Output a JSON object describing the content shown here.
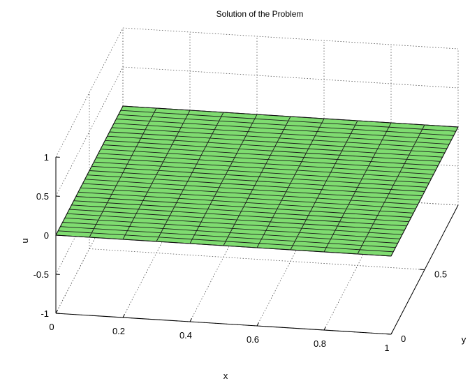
{
  "chart_data": {
    "type": "surface",
    "title": "Solution of the Problem",
    "xlabel": "x",
    "ylabel": "y",
    "zlabel": "u",
    "xlim": [
      0,
      1
    ],
    "ylim": [
      0,
      1
    ],
    "zlim": [
      -1,
      1
    ],
    "x_ticks": [
      "0",
      "0.2",
      "0.4",
      "0.6",
      "0.8",
      "1"
    ],
    "y_ticks": [
      "0",
      "0.5"
    ],
    "z_ticks": [
      "1",
      "0.5",
      "0",
      "-0.5",
      "-1"
    ],
    "grid": true,
    "surface_color": "#7fdc70",
    "mesh_color": "#1a1a1a",
    "mesh": {
      "x_divisions": 10,
      "y_divisions": 30
    },
    "surface": {
      "description_value": 0,
      "u_values": "constant 0 over x in [0,1], y in [0,1]"
    }
  }
}
